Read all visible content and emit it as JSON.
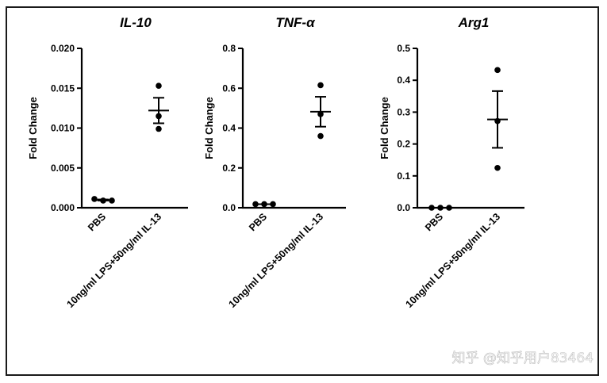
{
  "watermark": "知乎 @知乎用户83464",
  "chart_data": [
    {
      "type": "scatter",
      "title": "IL-10",
      "ylabel": "Fold Change",
      "ylim": [
        0,
        0.02
      ],
      "yticks": [
        "0.000",
        "0.005",
        "0.010",
        "0.015",
        "0.020"
      ],
      "categories": [
        "PBS",
        "10ng/ml LPS+50ng/ml IL-13"
      ],
      "points": [
        [
          0.0011,
          0.0009,
          0.0009
        ],
        [
          0.0153,
          0.0115,
          0.0099
        ]
      ],
      "mean": [
        0.00097,
        0.0122
      ],
      "sem": [
        7e-05,
        0.0016
      ]
    },
    {
      "type": "scatter",
      "title": "TNF-α",
      "ylabel": "Fold Change",
      "ylim": [
        0,
        0.8
      ],
      "yticks": [
        "0.0",
        "0.2",
        "0.4",
        "0.6",
        "0.8"
      ],
      "categories": [
        "PBS",
        "10ng/ml LPS+50ng/ml IL-13"
      ],
      "points": [
        [
          0.018,
          0.018,
          0.018
        ],
        [
          0.615,
          0.47,
          0.36
        ]
      ],
      "mean": [
        0.018,
        0.482
      ],
      "sem": [
        0.0,
        0.075
      ]
    },
    {
      "type": "scatter",
      "title": "Arg1",
      "ylabel": "Fold Change",
      "ylim": [
        0,
        0.5
      ],
      "yticks": [
        "0.0",
        "0.1",
        "0.2",
        "0.3",
        "0.4",
        "0.5"
      ],
      "categories": [
        "PBS",
        "10ng/ml LPS+50ng/ml IL-13"
      ],
      "points": [
        [
          0.0,
          0.0,
          0.0
        ],
        [
          0.432,
          0.272,
          0.125
        ]
      ],
      "mean": [
        0.0,
        0.277
      ],
      "sem": [
        0.0,
        0.089
      ]
    }
  ]
}
